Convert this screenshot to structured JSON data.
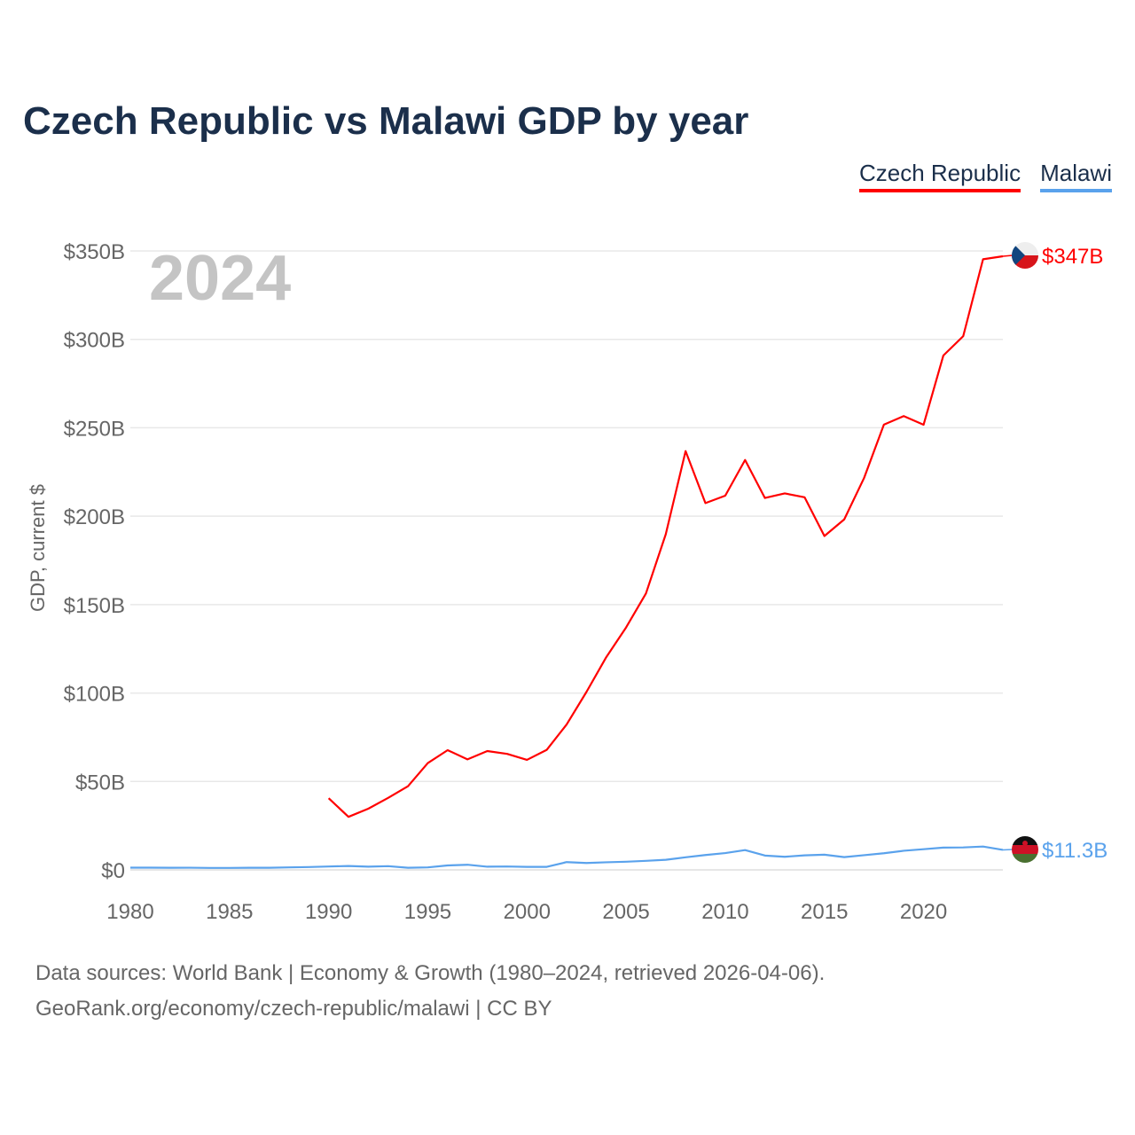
{
  "chart_data": {
    "type": "line",
    "title": "Czech Republic vs Malawi GDP by year",
    "ylabel": "GDP, current $",
    "xlabel": "",
    "xlim": [
      1980,
      2024
    ],
    "ylim": [
      0,
      350
    ],
    "y_ticks": [
      0,
      50,
      100,
      150,
      200,
      250,
      300,
      350
    ],
    "y_tick_labels": [
      "$0",
      "$50B",
      "$100B",
      "$150B",
      "$200B",
      "$250B",
      "$300B",
      "$350B"
    ],
    "x_ticks": [
      1980,
      1985,
      1990,
      1995,
      2000,
      2005,
      2010,
      2015,
      2020
    ],
    "x_tick_labels": [
      "1980",
      "1985",
      "1990",
      "1995",
      "2000",
      "2005",
      "2010",
      "2015",
      "2020"
    ],
    "grid": true,
    "legend_position": "top-right",
    "year_watermark": "2024",
    "series": [
      {
        "name": "Czech Republic",
        "color": "#ff0000",
        "end_label": "$347B",
        "x": [
          1990,
          1991,
          1992,
          1993,
          1994,
          1995,
          1996,
          1997,
          1998,
          1999,
          2000,
          2001,
          2002,
          2003,
          2004,
          2005,
          2006,
          2007,
          2008,
          2009,
          2010,
          2011,
          2012,
          2013,
          2014,
          2015,
          2016,
          2017,
          2018,
          2019,
          2020,
          2021,
          2022,
          2023,
          2024
        ],
        "values": [
          40.5,
          30,
          34.6,
          40.7,
          47.3,
          60.4,
          67.7,
          62.5,
          67.2,
          65.6,
          62.2,
          67.9,
          82.2,
          100.6,
          120.3,
          137.1,
          156.3,
          189.8,
          236.8,
          207.4,
          211.6,
          231.8,
          210.3,
          212.9,
          210.7,
          188.8,
          198.2,
          221.6,
          251.8,
          256.6,
          251.7,
          290.9,
          301.8,
          345.3,
          347
        ]
      },
      {
        "name": "Malawi",
        "color": "#5aa2ec",
        "end_label": "$11.3B",
        "x": [
          1980,
          1981,
          1982,
          1983,
          1984,
          1985,
          1986,
          1987,
          1988,
          1989,
          1990,
          1991,
          1992,
          1993,
          1994,
          1995,
          1996,
          1997,
          1998,
          1999,
          2000,
          2001,
          2002,
          2003,
          2004,
          2005,
          2006,
          2007,
          2008,
          2009,
          2010,
          2011,
          2012,
          2013,
          2014,
          2015,
          2016,
          2017,
          2018,
          2019,
          2020,
          2021,
          2022,
          2023,
          2024
        ],
        "values": [
          1.24,
          1.24,
          1.2,
          1.22,
          1.1,
          1.1,
          1.2,
          1.2,
          1.4,
          1.6,
          1.9,
          2.2,
          1.8,
          2.1,
          1.2,
          1.4,
          2.5,
          2.9,
          1.8,
          1.9,
          1.7,
          1.7,
          4.4,
          3.9,
          4.3,
          4.6,
          5.1,
          5.7,
          7.1,
          8.4,
          9.5,
          11.2,
          8.1,
          7.4,
          8.2,
          8.6,
          7.2,
          8.3,
          9.4,
          10.8,
          11.7,
          12.6,
          12.7,
          13.2,
          11.3
        ]
      }
    ]
  },
  "footer": {
    "line1": "Data sources: World Bank | Economy & Growth (1980–2024, retrieved 2026-04-06).",
    "line2": "GeoRank.org/economy/czech-republic/malawi | CC BY"
  }
}
